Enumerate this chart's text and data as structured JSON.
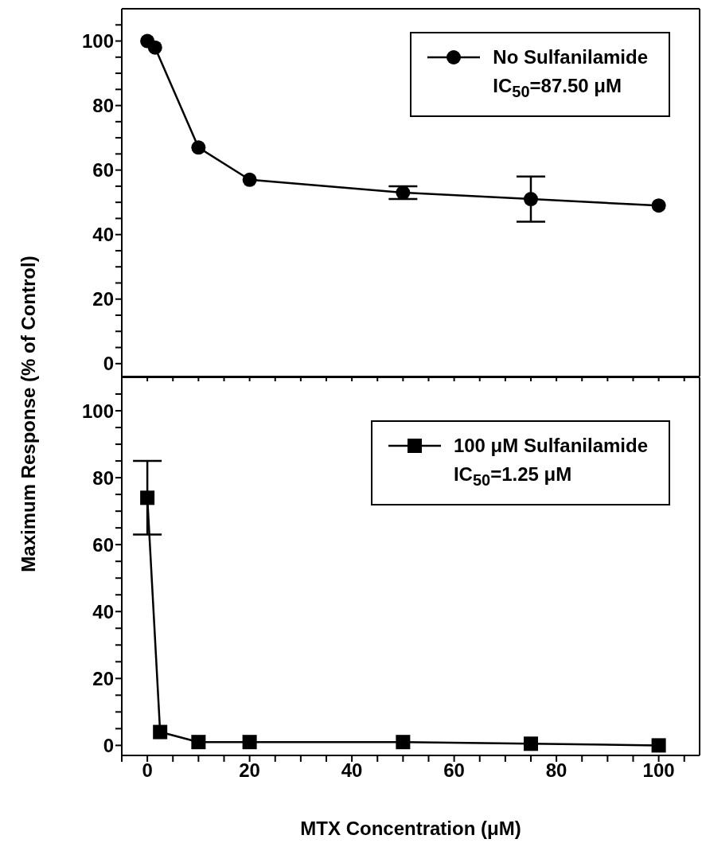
{
  "chart_data": [
    {
      "type": "line",
      "ylabel": "Maximum Response (% of Control)",
      "x": [
        0,
        1.5,
        10,
        20,
        50,
        75,
        100
      ],
      "series": [
        {
          "name": "No Sulfanilamide",
          "color": "#000000",
          "values": [
            100,
            98,
            67,
            57,
            53,
            51,
            49
          ],
          "errors": [
            null,
            null,
            null,
            null,
            2,
            [
              44,
              58
            ],
            null
          ]
        }
      ],
      "annotations": [
        "IC$_{50}$=87.50 μM"
      ],
      "marker": "circle",
      "legend": "top right",
      "tick_labels": "y",
      "xlim": [
        -5,
        108
      ],
      "ylim": [
        -4,
        110
      ],
      "xticks": [
        {
          "value": -5,
          "label": null
        },
        {
          "value": 0,
          "label": null
        },
        {
          "value": 5,
          "label": null
        },
        {
          "value": 10,
          "label": null
        },
        {
          "value": 15,
          "label": null
        },
        {
          "value": 20,
          "label": null
        },
        {
          "value": 25,
          "label": null
        },
        {
          "value": 30,
          "label": null
        },
        {
          "value": 35,
          "label": null
        },
        {
          "value": 40,
          "label": null
        },
        {
          "value": 45,
          "label": null
        },
        {
          "value": 50,
          "label": null
        },
        {
          "value": 55,
          "label": null
        },
        {
          "value": 60,
          "label": null
        },
        {
          "value": 65,
          "label": null
        },
        {
          "value": 70,
          "label": null
        },
        {
          "value": 75,
          "label": null
        },
        {
          "value": 80,
          "label": null
        },
        {
          "value": 85,
          "label": null
        },
        {
          "value": 90,
          "label": null
        },
        {
          "value": 95,
          "label": null
        },
        {
          "value": 100,
          "label": null
        },
        {
          "value": 105,
          "label": null
        }
      ],
      "yticks": [
        0,
        {
          "value": 5,
          "label": null
        },
        {
          "value": 10,
          "label": null
        },
        {
          "value": 15,
          "label": null
        },
        20,
        {
          "value": 25,
          "label": null
        },
        {
          "value": 30,
          "label": null
        },
        {
          "value": 35,
          "label": null
        },
        40,
        {
          "value": 45,
          "label": null
        },
        {
          "value": 50,
          "label": null
        },
        {
          "value": 55,
          "label": null
        },
        60,
        {
          "value": 65,
          "label": null
        },
        {
          "value": 70,
          "label": null
        },
        {
          "value": 75,
          "label": null
        },
        80,
        {
          "value": 85,
          "label": null
        },
        {
          "value": 90,
          "label": null
        },
        {
          "value": 95,
          "label": null
        },
        100,
        {
          "value": 105,
          "label": null
        }
      ]
    },
    {
      "type": "line",
      "xlabel": "MTX Concentration (μM)",
      "x": [
        0,
        2.5,
        10,
        20,
        50,
        75,
        100
      ],
      "series": [
        {
          "name": "100 μM Sulfanilamide",
          "color": "#000000",
          "values": [
            74,
            4,
            1,
            1,
            1,
            0.5,
            0
          ],
          "errors": [
            [
              63,
              85
            ],
            null,
            null,
            null,
            null,
            null,
            null
          ]
        }
      ],
      "annotations": [
        "IC$_{50}$=1.25 μM"
      ],
      "marker": "square",
      "legend": "top right",
      "xlim": [
        -5,
        108
      ],
      "ylim": [
        -3,
        110
      ],
      "xticks": [
        {
          "value": -5,
          "label": null
        },
        0,
        {
          "value": 5,
          "label": null
        },
        {
          "value": 10,
          "label": null
        },
        {
          "value": 15,
          "label": null
        },
        20,
        {
          "value": 25,
          "label": null
        },
        {
          "value": 30,
          "label": null
        },
        {
          "value": 35,
          "label": null
        },
        40,
        {
          "value": 45,
          "label": null
        },
        {
          "value": 50,
          "label": null
        },
        {
          "value": 55,
          "label": null
        },
        60,
        {
          "value": 65,
          "label": null
        },
        {
          "value": 70,
          "label": null
        },
        {
          "value": 75,
          "label": null
        },
        80,
        {
          "value": 85,
          "label": null
        },
        {
          "value": 90,
          "label": null
        },
        {
          "value": 95,
          "label": null
        },
        100,
        {
          "value": 105,
          "label": null
        }
      ],
      "yticks": [
        0,
        {
          "value": 5,
          "label": null
        },
        {
          "value": 10,
          "label": null
        },
        {
          "value": 15,
          "label": null
        },
        20,
        {
          "value": 25,
          "label": null
        },
        {
          "value": 30,
          "label": null
        },
        {
          "value": 35,
          "label": null
        },
        40,
        {
          "value": 45,
          "label": null
        },
        {
          "value": 50,
          "label": null
        },
        {
          "value": 55,
          "label": null
        },
        60,
        {
          "value": 65,
          "label": null
        },
        {
          "value": 70,
          "label": null
        },
        {
          "value": 75,
          "label": null
        },
        80,
        {
          "value": 85,
          "label": null
        },
        {
          "value": 90,
          "label": null
        },
        {
          "value": 95,
          "label": null
        },
        100,
        {
          "value": 105,
          "label": null
        }
      ]
    }
  ]
}
